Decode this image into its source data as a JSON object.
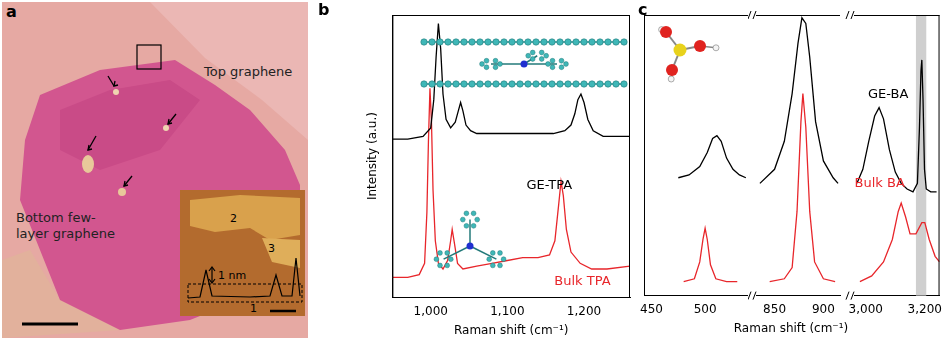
{
  "figure": {
    "a": {
      "label": "a",
      "top_label": "Top graphene",
      "bottom_label": [
        "Bottom few-",
        "layer graphene"
      ],
      "inset": {
        "profile_label": "1 nm",
        "regions": [
          "1",
          "2",
          "3"
        ]
      }
    }
  },
  "chart_data": [
    {
      "type": "line",
      "title": "b",
      "xlabel": "Raman shift (cm⁻¹)",
      "ylabel": "Intensity (a.u.)",
      "xlim": [
        950,
        1260
      ],
      "xticks": [
        {
          "value": 1000,
          "label": "1,000"
        },
        {
          "value": 1100,
          "label": "1,100"
        },
        {
          "value": 1200,
          "label": "1,200"
        }
      ],
      "ylim": [
        0,
        100
      ],
      "yticks": [],
      "tick_labels": "x",
      "grid": false,
      "series": [
        {
          "name": "GE-TPA",
          "color": "#000000",
          "x": [
            950,
            970,
            990,
            1000,
            1004,
            1007,
            1010,
            1013,
            1016,
            1020,
            1026,
            1032,
            1036,
            1039,
            1042,
            1046,
            1052,
            1060,
            1080,
            1100,
            1120,
            1140,
            1160,
            1175,
            1183,
            1188,
            1192,
            1196,
            1200,
            1205,
            1212,
            1225,
            1240,
            1260
          ],
          "values": [
            56,
            56,
            57,
            60,
            70,
            85,
            97,
            88,
            72,
            63,
            60,
            62,
            66,
            69,
            66,
            61,
            59,
            58,
            58,
            58,
            58,
            58,
            58,
            59,
            61,
            65,
            70,
            72,
            69,
            63,
            59,
            57,
            57,
            57
          ]
        },
        {
          "name": "Bulk TPA",
          "color": "#e8262b",
          "x": [
            950,
            970,
            985,
            992,
            995,
            997,
            999,
            1001,
            1003,
            1006,
            1010,
            1016,
            1022,
            1026,
            1028,
            1031,
            1035,
            1042,
            1060,
            1080,
            1100,
            1120,
            1140,
            1155,
            1162,
            1167,
            1170,
            1173,
            1177,
            1183,
            1195,
            1210,
            1230,
            1260
          ],
          "values": [
            7,
            7,
            8,
            12,
            30,
            55,
            74,
            62,
            38,
            20,
            12,
            10,
            13,
            20,
            24,
            19,
            12,
            10,
            11,
            12,
            13,
            14,
            14,
            15,
            20,
            33,
            41,
            36,
            24,
            16,
            12,
            10,
            10,
            11
          ]
        }
      ]
    },
    {
      "type": "line",
      "title": "c",
      "xlim": [
        443,
        540
      ],
      "xticks": [
        450,
        500
      ],
      "ylim": [
        0,
        100
      ],
      "yticks": [],
      "tick_labels": "x",
      "grid": false,
      "series": [
        {
          "color": "#000000",
          "x": [
            475,
            485,
            495,
            502,
            507,
            511,
            515,
            520,
            526,
            532,
            538
          ],
          "values": [
            42,
            43,
            46,
            51,
            56,
            57,
            55,
            49,
            45,
            43,
            42
          ]
        },
        {
          "color": "#e8262b",
          "x": [
            480,
            490,
            495,
            498,
            500,
            502,
            505,
            510,
            520,
            530
          ],
          "values": [
            5,
            6,
            12,
            20,
            24,
            20,
            11,
            6,
            5,
            5
          ]
        }
      ]
    },
    {
      "type": "line",
      "xlabel": "Raman shift (cm⁻¹)",
      "xlim": [
        831,
        917
      ],
      "xticks": [
        850,
        900
      ],
      "ylim": [
        0,
        100
      ],
      "yticks": [],
      "tick_labels": "x",
      "grid": false,
      "series": [
        {
          "color": "#000000",
          "x": [
            835,
            850,
            860,
            868,
            874,
            878,
            882,
            886,
            892,
            900,
            910,
            915
          ],
          "values": [
            40,
            45,
            55,
            72,
            90,
            99,
            97,
            85,
            62,
            48,
            42,
            40
          ]
        },
        {
          "color": "#e8262b",
          "x": [
            845,
            860,
            868,
            873,
            877,
            879,
            882,
            886,
            891,
            900,
            912
          ],
          "values": [
            5,
            6,
            10,
            30,
            62,
            72,
            60,
            30,
            12,
            6,
            5
          ]
        }
      ]
    },
    {
      "type": "line",
      "xlim": [
        2960,
        3250
      ],
      "xticks": [
        {
          "value": 3000,
          "label": "3,000"
        },
        {
          "value": 3200,
          "label": "3,200"
        }
      ],
      "ylim": [
        0,
        100
      ],
      "yticks": [],
      "tick_labels": "x",
      "grid": false,
      "highlight": [
        3170,
        3205
      ],
      "series": [
        {
          "name": "GE-BA",
          "color": "#000000",
          "x": [
            2970,
            2990,
            3010,
            3030,
            3045,
            3060,
            3080,
            3100,
            3120,
            3140,
            3160,
            3175,
            3182,
            3187,
            3190,
            3194,
            3199,
            3205,
            3220,
            3240
          ],
          "values": [
            40,
            45,
            55,
            64,
            67,
            63,
            52,
            44,
            40,
            38,
            37,
            40,
            60,
            80,
            84,
            70,
            45,
            38,
            37,
            37
          ]
        },
        {
          "name": "Bulk BA",
          "color": "#e8262b",
          "x": [
            2980,
            3020,
            3060,
            3090,
            3110,
            3120,
            3135,
            3150,
            3170,
            3190,
            3200,
            3215,
            3235,
            3250
          ],
          "values": [
            5,
            7,
            12,
            20,
            30,
            33,
            28,
            22,
            22,
            26,
            26,
            20,
            14,
            12
          ]
        }
      ]
    }
  ]
}
